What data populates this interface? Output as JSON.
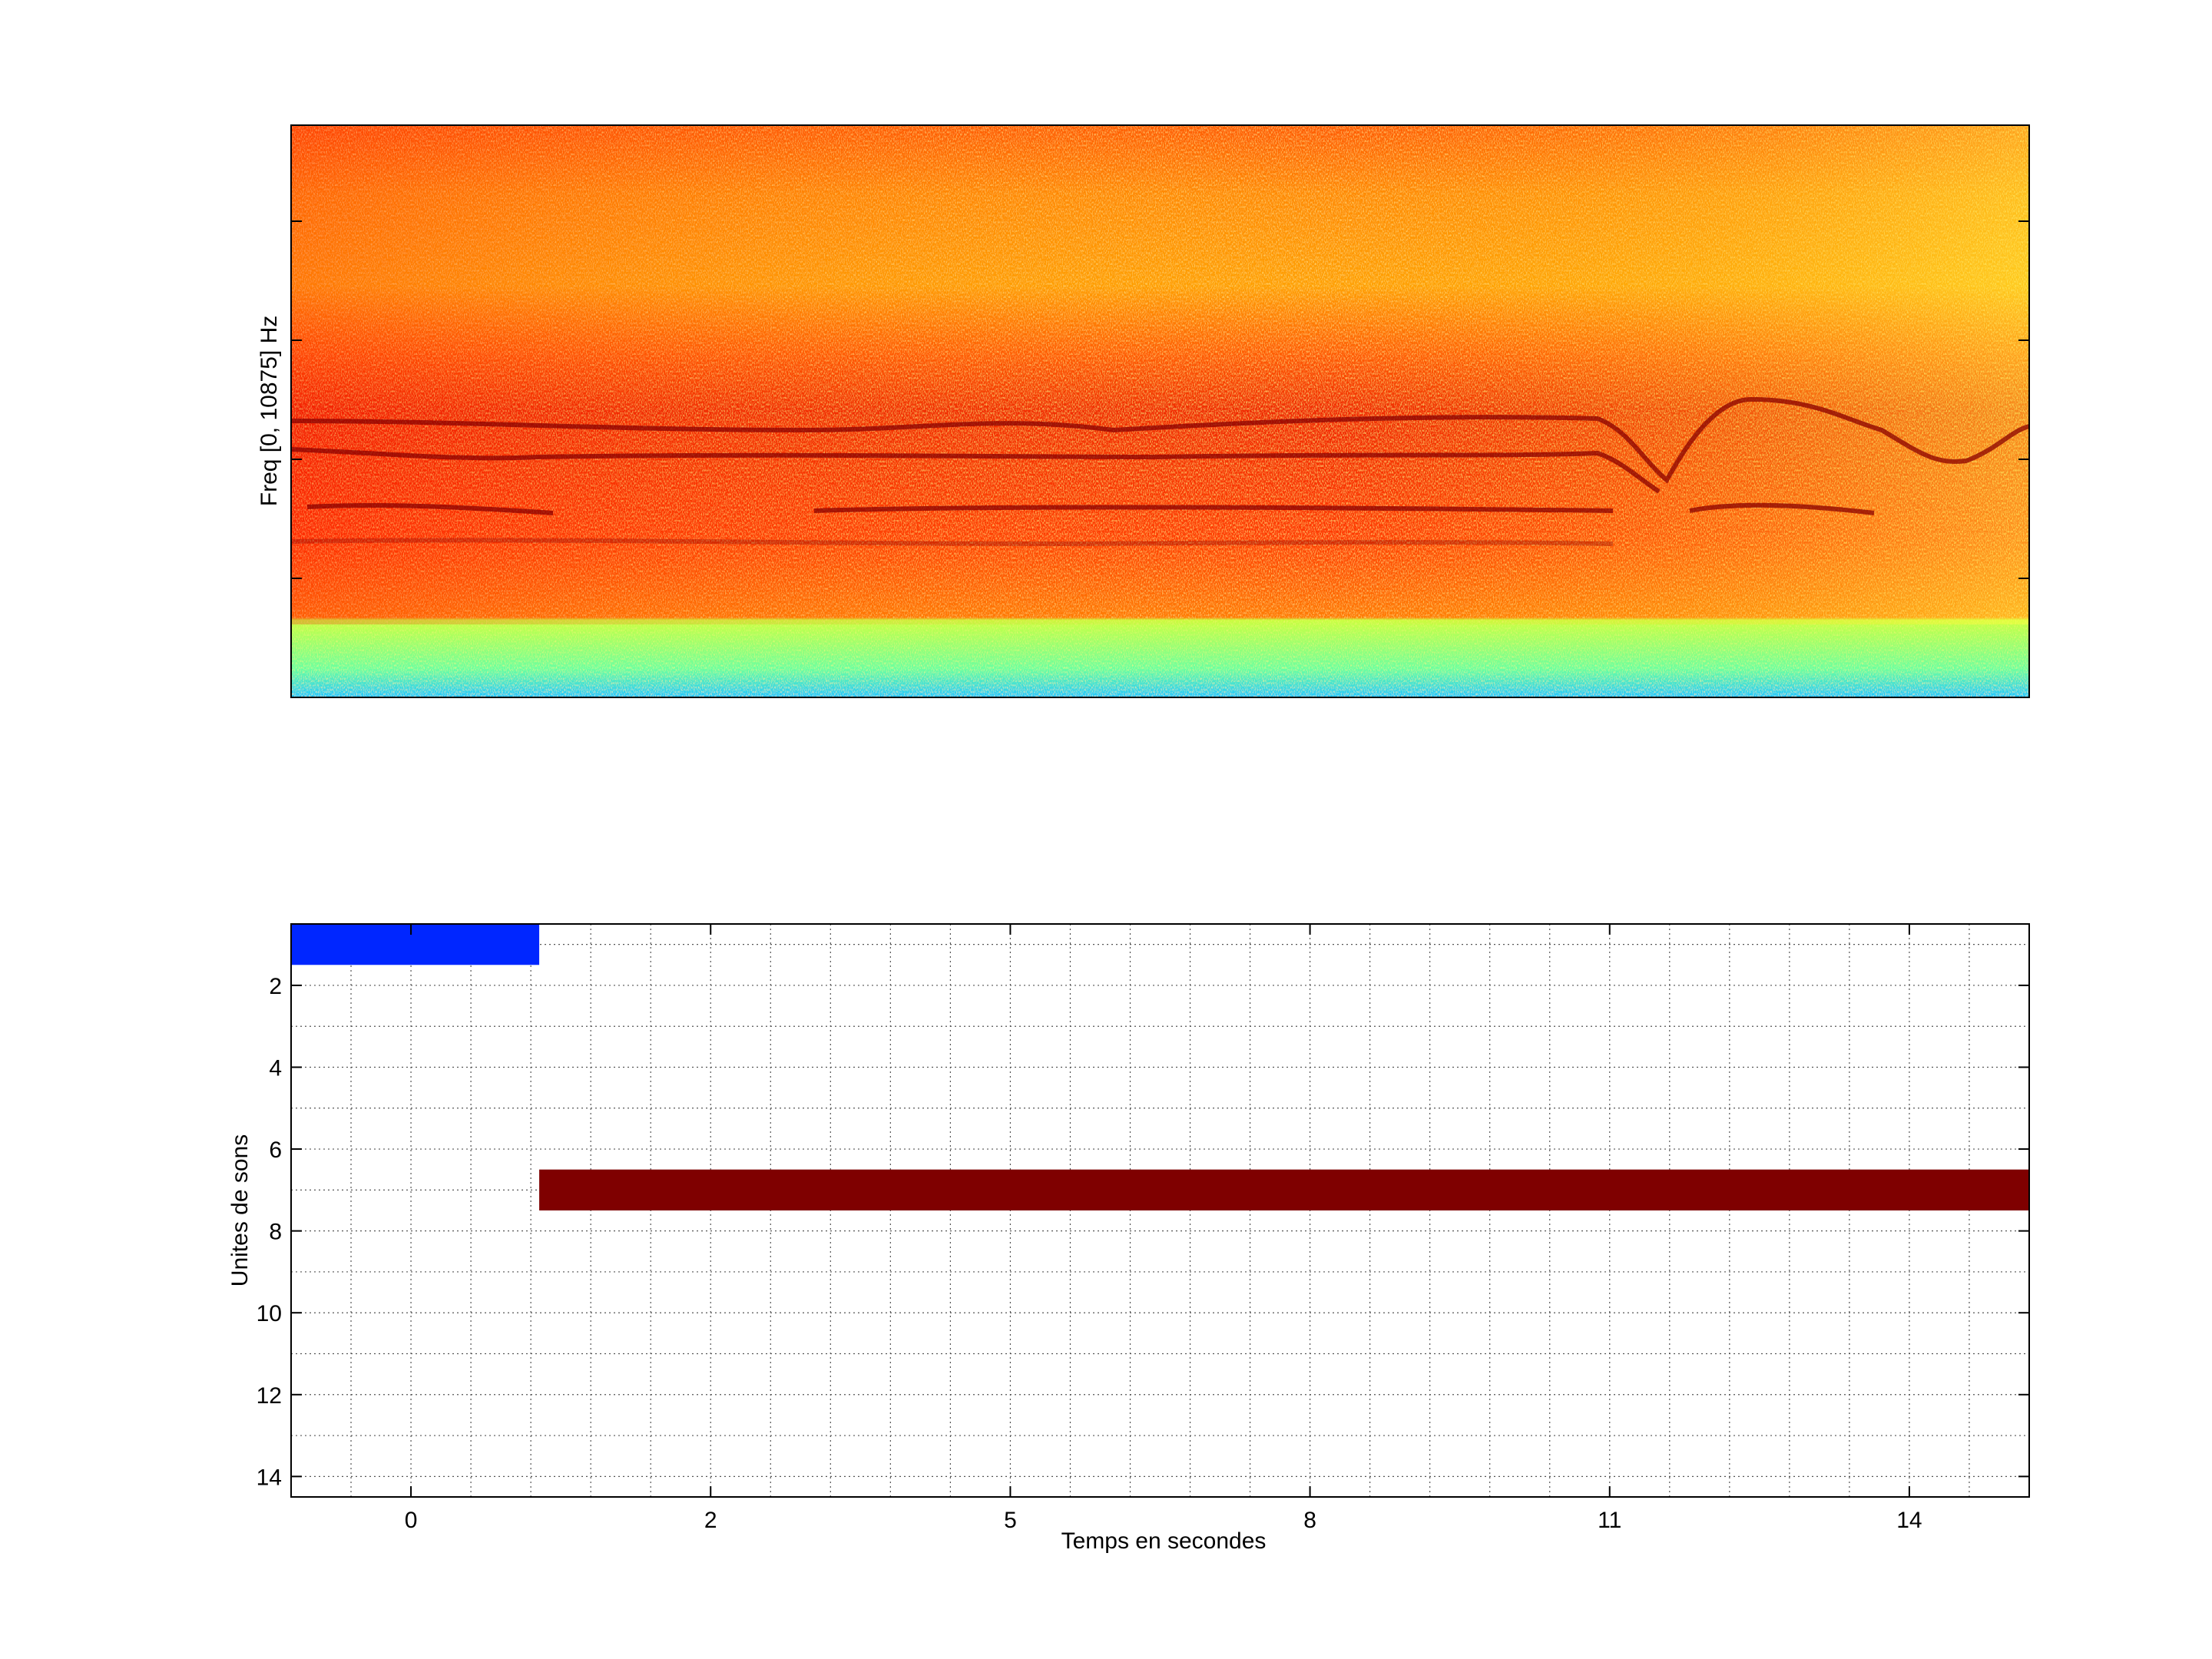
{
  "chart_data": [
    {
      "type": "heatmap",
      "title": "",
      "xlabel": "",
      "ylabel": "Freq [0, 10875] Hz",
      "description_free": true,
      "colormap": [
        "#00bfff",
        "#7fff7f",
        "#ffff00",
        "#ff9900",
        "#ff2a00",
        "#b30000",
        "#800000"
      ],
      "grid": false
    },
    {
      "type": "bar",
      "orientation": "horizontal",
      "title": "",
      "xlabel": "Temps en secondes",
      "ylabel": "Unites de sons",
      "xticks": [
        {
          "pos": 2,
          "label": "0"
        },
        {
          "pos": 7,
          "label": "2"
        },
        {
          "pos": 12,
          "label": "5"
        },
        {
          "pos": 17,
          "label": "8"
        },
        {
          "pos": 22,
          "label": "11"
        },
        {
          "pos": 27,
          "label": "14"
        }
      ],
      "xlim": [
        0,
        29
      ],
      "yticks": [
        2,
        4,
        6,
        8,
        10,
        12,
        14
      ],
      "ylim": [
        0.5,
        14.5
      ],
      "ydirection": "reverse",
      "grid": true,
      "series": [
        {
          "unit": 1,
          "start": 0,
          "end": 4.14,
          "color": "#0026ff"
        },
        {
          "unit": 7,
          "start": 4.14,
          "end": 29,
          "color": "#7f0000"
        }
      ]
    }
  ]
}
